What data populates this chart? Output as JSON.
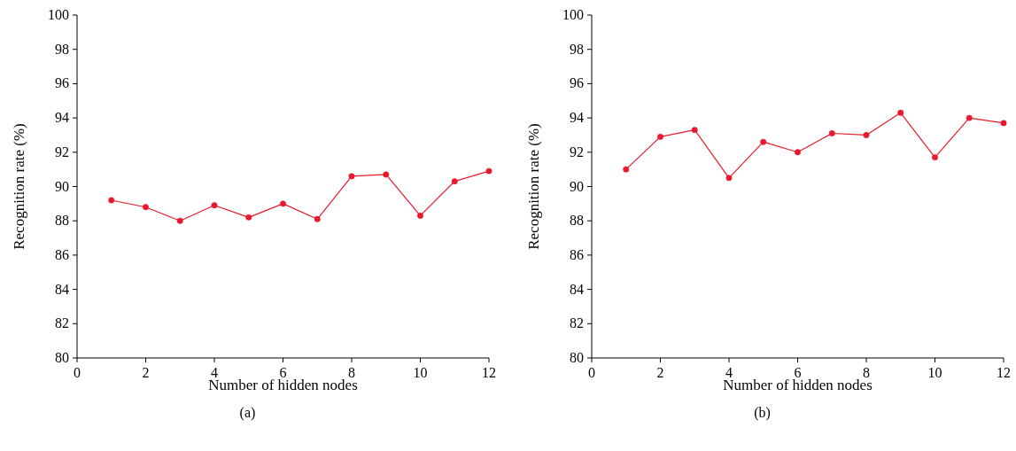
{
  "chart_data": [
    {
      "type": "line",
      "x": [
        1,
        2,
        3,
        4,
        5,
        6,
        7,
        8,
        9,
        10,
        11,
        12
      ],
      "series": [
        {
          "color": "#e8192c",
          "values": [
            89.2,
            88.8,
            88.0,
            88.9,
            88.2,
            89.0,
            88.1,
            90.6,
            90.7,
            88.3,
            90.3,
            90.9
          ]
        }
      ],
      "xlabel": "Number of hidden nodes",
      "ylabel": "Recognition rate (%)",
      "xlim": [
        0,
        12
      ],
      "xticks": [
        0,
        2,
        4,
        6,
        8,
        10,
        12
      ],
      "ylim": [
        80,
        100
      ],
      "yticks": [
        80,
        82,
        84,
        86,
        88,
        90,
        92,
        94,
        96,
        98,
        100
      ],
      "marker": "circle",
      "grid": false,
      "annotations": [
        "(a)"
      ]
    },
    {
      "type": "line",
      "x": [
        1,
        2,
        3,
        4,
        5,
        6,
        7,
        8,
        9,
        10,
        11,
        12
      ],
      "series": [
        {
          "color": "#e8192c",
          "values": [
            91.0,
            92.9,
            93.3,
            90.5,
            92.6,
            92.0,
            93.1,
            93.0,
            94.3,
            91.7,
            94.0,
            93.7
          ]
        }
      ],
      "xlabel": "Number of hidden nodes",
      "ylabel": "Recognition rate (%)",
      "xlim": [
        0,
        12
      ],
      "xticks": [
        0,
        2,
        4,
        6,
        8,
        10,
        12
      ],
      "ylim": [
        80,
        100
      ],
      "yticks": [
        80,
        82,
        84,
        86,
        88,
        90,
        92,
        94,
        96,
        98,
        100
      ],
      "marker": "circle",
      "grid": false,
      "annotations": [
        "(b)"
      ]
    }
  ]
}
